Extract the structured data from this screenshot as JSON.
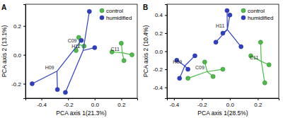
{
  "chart_data": [
    {
      "type": "scatter",
      "title": "A",
      "x_label": "PCA axis 1(21.3%)",
      "y_label": "PCA axis 2 (13.1%)",
      "xlim": [
        -0.52,
        0.32
      ],
      "xticks": [
        -0.4,
        -0.2,
        {
          "value": 0,
          "label": "0.0"
        },
        0.2
      ],
      "ylim": [
        -0.3,
        0.35
      ],
      "yticks": [
        -0.2,
        {
          "value": 0,
          "label": "0.0"
        },
        0.2
      ],
      "legend": "upper right",
      "marker": "circle",
      "series": [
        {
          "name": "control",
          "color": "#4cbb47",
          "groups": [
            {
              "label": "C09",
              "x": [
                -0.12,
                -0.08,
                -0.14
              ],
              "values": [
                0.12,
                0.06,
                0.03
              ]
            },
            {
              "label": "C11",
              "x": [
                0.13,
                0.2,
                0.22,
                0.28
              ],
              "values": [
                0.02,
                0.08,
                -0.04,
                0.0
              ]
            }
          ]
        },
        {
          "name": "humidified",
          "color": "#2f3fc4",
          "groups": [
            {
              "label": "H09",
              "x": [
                -0.47,
                -0.28,
                -0.1
              ],
              "values": [
                -0.2,
                -0.24,
                0.1
              ]
            },
            {
              "label": "H11",
              "x": [
                -0.04,
                0.0,
                -0.22
              ],
              "values": [
                0.3,
                0.05,
                -0.26
              ]
            }
          ]
        }
      ]
    },
    {
      "type": "scatter",
      "title": "B",
      "x_label": "PCA axis 1(28.5%)",
      "y_label": "PCA axis 2 (10.4%)",
      "xlim": [
        -0.45,
        0.35
      ],
      "xticks": [
        -0.4,
        -0.2,
        {
          "value": 0,
          "label": "0.0"
        },
        0.2
      ],
      "ylim": [
        -0.52,
        0.52
      ],
      "yticks": [
        -0.4,
        -0.2,
        {
          "value": 0,
          "label": "0.0"
        },
        0.2,
        0.4
      ],
      "legend": "upper right",
      "marker": "circle",
      "series": [
        {
          "name": "control",
          "color": "#4cbb47",
          "groups": [
            {
              "label": "C09",
              "x": [
                -0.3,
                -0.12,
                -0.05,
                -0.18
              ],
              "values": [
                -0.3,
                -0.28,
                -0.2,
                -0.12
              ]
            },
            {
              "label": "C11",
              "x": [
                0.15,
                0.22,
                0.28,
                0.25
              ],
              "values": [
                -0.05,
                0.1,
                -0.15,
                -0.35
              ]
            }
          ]
        },
        {
          "name": "humidified",
          "color": "#2f3fc4",
          "groups": [
            {
              "label": "H09",
              "x": [
                -0.38,
                -0.25,
                -0.3,
                -0.36
              ],
              "values": [
                -0.1,
                -0.05,
                -0.2,
                -0.3
              ]
            },
            {
              "label": "H11",
              "x": [
                -0.02,
                0.0,
                -0.05,
                0.08,
                -0.1
              ],
              "values": [
                0.45,
                0.4,
                0.2,
                0.05,
                0.1
              ]
            }
          ]
        }
      ]
    }
  ]
}
